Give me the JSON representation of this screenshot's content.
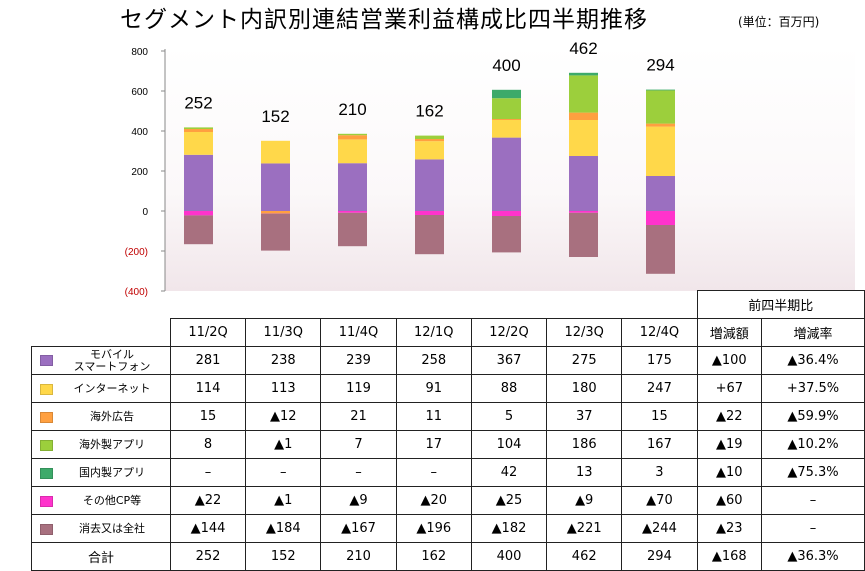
{
  "title": "セグメント内訳別連結営業利益構成比四半期推移",
  "unit": "(単位：百万円)",
  "chart_data": {
    "type": "bar",
    "stacked": true,
    "categories": [
      "11/2Q",
      "11/3Q",
      "11/4Q",
      "12/1Q",
      "12/2Q",
      "12/3Q",
      "12/4Q"
    ],
    "ylim": [
      -400,
      800
    ],
    "yticks": [
      "800",
      "600",
      "400",
      "200",
      "0",
      "(200)",
      "(400)"
    ],
    "ytick_values": [
      800,
      600,
      400,
      200,
      0,
      -200,
      -400
    ],
    "totals": [
      252,
      152,
      210,
      162,
      400,
      462,
      294
    ],
    "series": [
      {
        "name": "モバイル スマートフォン",
        "color": "#9b6fc0",
        "values": [
          281,
          238,
          239,
          258,
          367,
          275,
          175
        ]
      },
      {
        "name": "インターネット",
        "color": "#ffd84a",
        "values": [
          114,
          113,
          119,
          91,
          88,
          180,
          247
        ]
      },
      {
        "name": "海外広告",
        "color": "#ffa040",
        "values": [
          15,
          -12,
          21,
          11,
          5,
          37,
          15
        ]
      },
      {
        "name": "海外製アプリ",
        "color": "#9ccf3c",
        "values": [
          8,
          -1,
          7,
          17,
          104,
          186,
          167
        ]
      },
      {
        "name": "国内製アプリ",
        "color": "#3daa6a",
        "values": [
          null,
          null,
          null,
          null,
          42,
          13,
          3
        ]
      },
      {
        "name": "その他CP等",
        "color": "#ff33cc",
        "values": [
          -22,
          -1,
          -9,
          -20,
          -25,
          -9,
          -70
        ]
      },
      {
        "name": "消去又は全社",
        "color": "#a8707f",
        "values": [
          -144,
          -184,
          -167,
          -196,
          -182,
          -221,
          -244
        ]
      }
    ]
  },
  "table": {
    "header_group": "前四半期比",
    "col_increase": "増減額",
    "col_rate": "増減率",
    "quarters": [
      "11/2Q",
      "11/3Q",
      "11/4Q",
      "12/1Q",
      "12/2Q",
      "12/3Q",
      "12/4Q"
    ],
    "rows": [
      {
        "label": "モバイル\nスマートフォン",
        "color": "#9b6fc0",
        "cells": [
          "281",
          "238",
          "239",
          "258",
          "367",
          "275",
          "175"
        ],
        "diff": "▲100",
        "rate": "▲36.4%"
      },
      {
        "label": "インターネット",
        "color": "#ffd84a",
        "cells": [
          "114",
          "113",
          "119",
          "91",
          "88",
          "180",
          "247"
        ],
        "diff": "+67",
        "rate": "+37.5%"
      },
      {
        "label": "海外広告",
        "color": "#ffa040",
        "cells": [
          "15",
          "▲12",
          "21",
          "11",
          "5",
          "37",
          "15"
        ],
        "diff": "▲22",
        "rate": "▲59.9%"
      },
      {
        "label": "海外製アプリ",
        "color": "#9ccf3c",
        "cells": [
          "8",
          "▲1",
          "7",
          "17",
          "104",
          "186",
          "167"
        ],
        "diff": "▲19",
        "rate": "▲10.2%"
      },
      {
        "label": "国内製アプリ",
        "color": "#3daa6a",
        "cells": [
          "–",
          "–",
          "–",
          "–",
          "42",
          "13",
          "3"
        ],
        "diff": "▲10",
        "rate": "▲75.3%"
      },
      {
        "label": "その他CP等",
        "color": "#ff33cc",
        "cells": [
          "▲22",
          "▲1",
          "▲9",
          "▲20",
          "▲25",
          "▲9",
          "▲70"
        ],
        "diff": "▲60",
        "rate": "–"
      },
      {
        "label": "消去又は全社",
        "color": "#a8707f",
        "cells": [
          "▲144",
          "▲184",
          "▲167",
          "▲196",
          "▲182",
          "▲221",
          "▲244"
        ],
        "diff": "▲23",
        "rate": "–"
      }
    ],
    "total": {
      "label": "合計",
      "cells": [
        "252",
        "152",
        "210",
        "162",
        "400",
        "462",
        "294"
      ],
      "diff": "▲168",
      "rate": "▲36.3%"
    }
  }
}
